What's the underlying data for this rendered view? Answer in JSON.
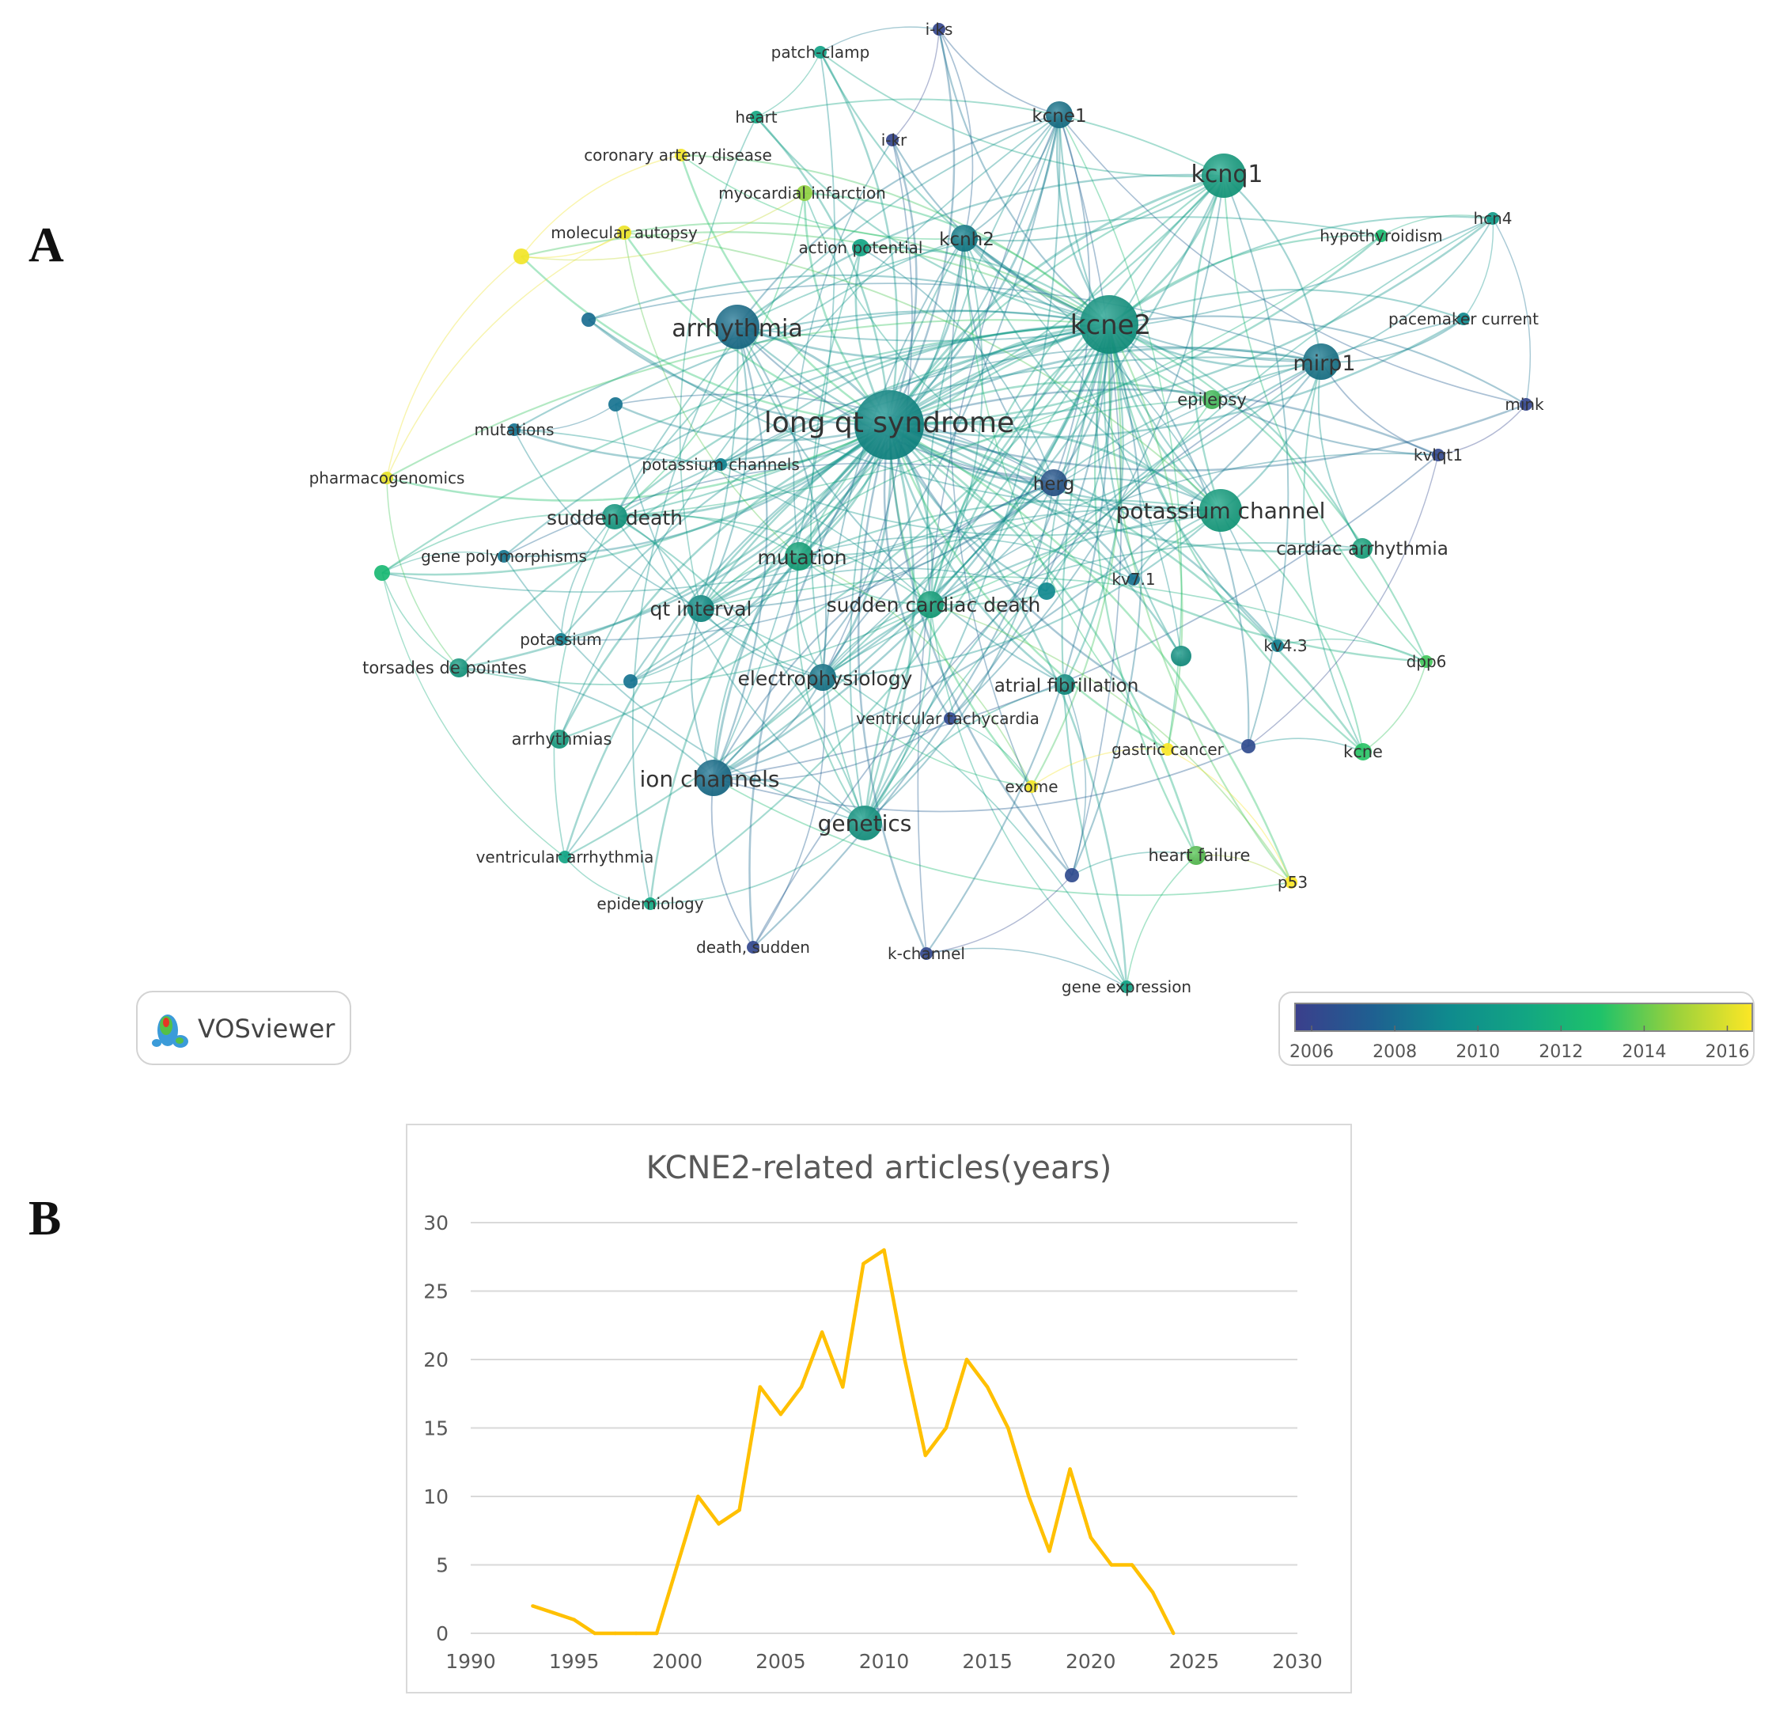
{
  "panels": {
    "a_label": "A",
    "b_label": "B"
  },
  "vosviewer": {
    "brand": "VOSviewer",
    "colorbar": {
      "ticks": [
        "2006",
        "2008",
        "2010",
        "2012",
        "2014",
        "2016"
      ],
      "min_year": 2005.6,
      "max_year": 2016.6,
      "stops": [
        "#3b3f8c",
        "#1f5f91",
        "#0f8a8e",
        "#12a583",
        "#1ec26a",
        "#9ad13c",
        "#fde725"
      ]
    },
    "nodes": [
      {
        "id": "lqts",
        "label": "long qt syndrome",
        "year": 2009.6,
        "weight": 10
      },
      {
        "id": "kcne2",
        "label": "kcne2",
        "year": 2010.4,
        "weight": 7
      },
      {
        "id": "arrhythmia",
        "label": "arrhythmia",
        "year": 2008.2,
        "weight": 5
      },
      {
        "id": "kcnq1",
        "label": "kcnq1",
        "year": 2011.0,
        "weight": 5
      },
      {
        "id": "potch",
        "label": "potassium channel",
        "year": 2011.1,
        "weight": 5
      },
      {
        "id": "mirp1",
        "label": "mirp1",
        "year": 2008.5,
        "weight": 4
      },
      {
        "id": "ionch",
        "label": "ion channels",
        "year": 2008.2,
        "weight": 4
      },
      {
        "id": "genetics",
        "label": "genetics",
        "year": 2010.4,
        "weight": 4
      },
      {
        "id": "kcne1",
        "label": "kcne1",
        "year": 2008.4,
        "weight": 3
      },
      {
        "id": "kcnh2",
        "label": "kcnh2",
        "year": 2008.9,
        "weight": 3
      },
      {
        "id": "herg",
        "label": "herg",
        "year": 2007.0,
        "weight": 3
      },
      {
        "id": "suddendeath",
        "label": "sudden death",
        "year": 2010.7,
        "weight": 3
      },
      {
        "id": "mutation",
        "label": "mutation",
        "year": 2011.4,
        "weight": 3
      },
      {
        "id": "scd",
        "label": "sudden cardiac death",
        "year": 2011.3,
        "weight": 3
      },
      {
        "id": "qti",
        "label": "qt interval",
        "year": 2009.8,
        "weight": 3
      },
      {
        "id": "ephys",
        "label": "electrophysiology",
        "year": 2008.6,
        "weight": 3
      },
      {
        "id": "afib",
        "label": "atrial fibrillation",
        "year": 2010.1,
        "weight": 2
      },
      {
        "id": "cardarr",
        "label": "cardiac arrhythmia",
        "year": 2011.3,
        "weight": 2
      },
      {
        "id": "arrhythmias",
        "label": "arrhythmias",
        "year": 2011.0,
        "weight": 2
      },
      {
        "id": "tdp",
        "label": "torsades de pointes",
        "year": 2010.8,
        "weight": 2
      },
      {
        "id": "epilepsy",
        "label": "epilepsy",
        "year": 2013.5,
        "weight": 2
      },
      {
        "id": "heartfail",
        "label": "heart failure",
        "year": 2013.8,
        "weight": 2
      },
      {
        "id": "kcne",
        "label": "kcne",
        "year": 2013.1,
        "weight": 2
      },
      {
        "id": "actpot",
        "label": "action potential",
        "year": 2011.0,
        "weight": 2
      },
      {
        "id": "myoinf",
        "label": "myocardial infarction",
        "year": 2014.6,
        "weight": 2
      },
      {
        "id": "molaut",
        "label": "molecular autopsy",
        "year": 2016.3,
        "weight": 1
      },
      {
        "id": "cad",
        "label": "coronary artery disease",
        "year": 2016.4,
        "weight": 1
      },
      {
        "id": "heart",
        "label": "heart",
        "year": 2011.2,
        "weight": 1
      },
      {
        "id": "patch",
        "label": "patch-clamp",
        "year": 2010.8,
        "weight": 1
      },
      {
        "id": "iks",
        "label": "i-ks",
        "year": 2006.0,
        "weight": 1
      },
      {
        "id": "ikr",
        "label": "i-kr",
        "year": 2006.0,
        "weight": 1
      },
      {
        "id": "hypo",
        "label": "hypothyroidism",
        "year": 2012.5,
        "weight": 1
      },
      {
        "id": "hcn4",
        "label": "hcn4",
        "year": 2010.3,
        "weight": 1
      },
      {
        "id": "pace",
        "label": "pacemaker current",
        "year": 2009.3,
        "weight": 1
      },
      {
        "id": "mink",
        "label": "mink",
        "year": 2006.0,
        "weight": 1
      },
      {
        "id": "kvlqt1",
        "label": "kvlqt1",
        "year": 2006.1,
        "weight": 1
      },
      {
        "id": "mutations",
        "label": "mutations",
        "year": 2008.3,
        "weight": 1
      },
      {
        "id": "pgx",
        "label": "pharmacogenomics",
        "year": 2016.2,
        "weight": 1
      },
      {
        "id": "potch2",
        "label": "potassium channels",
        "year": 2008.9,
        "weight": 1
      },
      {
        "id": "genepoly",
        "label": "gene polymorphisms",
        "year": 2008.4,
        "weight": 1
      },
      {
        "id": "potassium",
        "label": "potassium",
        "year": 2008.8,
        "weight": 1
      },
      {
        "id": "kv71",
        "label": "kv7.1",
        "year": 2008.2,
        "weight": 1
      },
      {
        "id": "kv43",
        "label": "kv4.3",
        "year": 2008.8,
        "weight": 1
      },
      {
        "id": "dpp6",
        "label": "dpp6",
        "year": 2013.5,
        "weight": 1
      },
      {
        "id": "vt",
        "label": "ventricular tachycardia",
        "year": 2006.2,
        "weight": 1
      },
      {
        "id": "gastric",
        "label": "gastric cancer",
        "year": 2016.5,
        "weight": 1
      },
      {
        "id": "exome",
        "label": "exome",
        "year": 2016.4,
        "weight": 1
      },
      {
        "id": "ventarr",
        "label": "ventricular arrhythmia",
        "year": 2011.0,
        "weight": 1
      },
      {
        "id": "epid",
        "label": "epidemiology",
        "year": 2011.2,
        "weight": 1
      },
      {
        "id": "deathsud",
        "label": "death, sudden",
        "year": 2006.1,
        "weight": 1
      },
      {
        "id": "kch",
        "label": "k-channel",
        "year": 2006.1,
        "weight": 1
      },
      {
        "id": "p53",
        "label": "p53",
        "year": 2016.6,
        "weight": 1
      },
      {
        "id": "geneexp",
        "label": "gene expression",
        "year": 2010.9,
        "weight": 1
      },
      {
        "id": "u1",
        "label": "",
        "year": 2016.4,
        "weight": 1
      },
      {
        "id": "u2",
        "label": "",
        "year": 2008.0,
        "weight": 1
      },
      {
        "id": "u3",
        "label": "",
        "year": 2008.3,
        "weight": 1
      },
      {
        "id": "u4",
        "label": "",
        "year": 2012.3,
        "weight": 1
      },
      {
        "id": "u5",
        "label": "",
        "year": 2008.3,
        "weight": 1
      },
      {
        "id": "u6",
        "label": "",
        "year": 2010.2,
        "weight": 1
      },
      {
        "id": "u7",
        "label": "",
        "year": 2009.2,
        "weight": 1
      },
      {
        "id": "u8",
        "label": "",
        "year": 2006.3,
        "weight": 1
      },
      {
        "id": "u9",
        "label": "",
        "year": 2006.3,
        "weight": 1
      }
    ]
  },
  "chart_data": {
    "type": "line",
    "title": "KCNE2-related articles(years)",
    "xlabel": "",
    "ylabel": "",
    "xlim": [
      1990,
      2030
    ],
    "ylim": [
      0,
      30
    ],
    "x_ticks": [
      1990,
      1995,
      2000,
      2005,
      2010,
      2015,
      2020,
      2025,
      2030
    ],
    "y_ticks": [
      0,
      5,
      10,
      15,
      20,
      25,
      30
    ],
    "grid": true,
    "series": [
      {
        "name": "KCNE2-related articles",
        "color": "#ffc000",
        "x": [
          1993,
          1994,
          1995,
          1996,
          1997,
          1998,
          1999,
          2000,
          2001,
          2002,
          2003,
          2004,
          2005,
          2006,
          2007,
          2008,
          2009,
          2010,
          2011,
          2012,
          2013,
          2014,
          2015,
          2016,
          2017,
          2018,
          2019,
          2020,
          2021,
          2022,
          2023,
          2024
        ],
        "values": [
          2,
          1.5,
          1,
          0,
          0,
          0,
          0,
          5,
          10,
          8,
          9,
          18,
          16,
          18,
          22,
          18,
          27,
          28,
          20,
          13,
          15,
          20,
          18,
          15,
          10,
          6,
          12,
          7,
          5,
          5,
          3,
          0
        ]
      }
    ]
  }
}
